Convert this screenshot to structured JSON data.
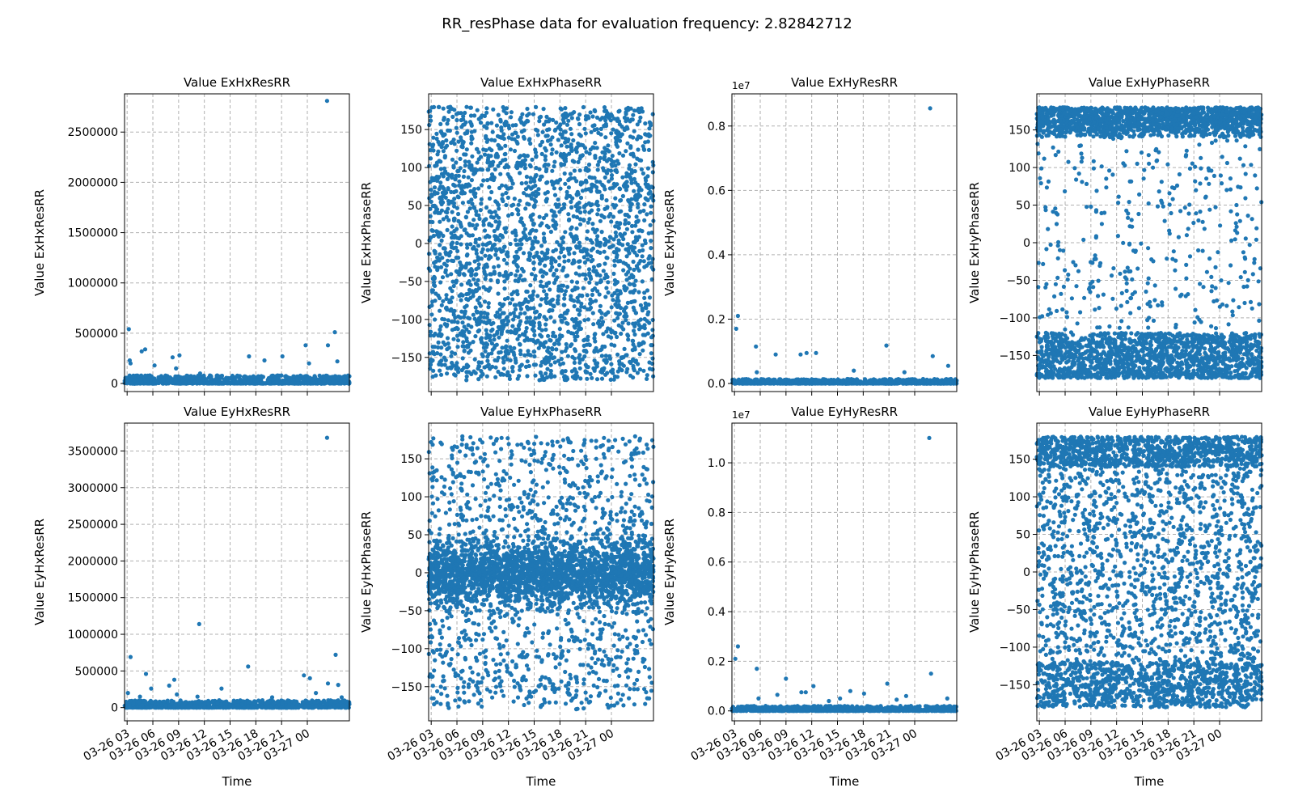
{
  "figure": {
    "title": "RR_resPhase data for evaluation frequency: 2.82842712"
  },
  "chart_data": [
    {
      "id": "exhx-res",
      "type": "scatter",
      "title": "Value ExHxResRR",
      "ylabel": "Value ExHxResRR",
      "xlabel": "",
      "ylim": [
        -80000,
        2880000
      ],
      "yticks": [
        0,
        500000,
        1000000,
        1500000,
        2000000,
        2500000
      ],
      "ytick_labels": [
        "0",
        "500000",
        "1000000",
        "1500000",
        "2000000",
        "2500000"
      ],
      "y_offset_text": "",
      "grid": true,
      "point_color": "#1f77b4",
      "distribution": "near-zero",
      "base_max": 80000,
      "n": 900,
      "seed": 11,
      "outliers": [
        [
          3.2,
          540000
        ],
        [
          3.3,
          230000
        ],
        [
          3.4,
          200000
        ],
        [
          4.7,
          320000
        ],
        [
          5.1,
          340000
        ],
        [
          6.2,
          180000
        ],
        [
          8.3,
          260000
        ],
        [
          9.1,
          280000
        ],
        [
          8.7,
          150000
        ],
        [
          17.2,
          270000
        ],
        [
          19.0,
          230000
        ],
        [
          21.1,
          270000
        ],
        [
          23.8,
          380000
        ],
        [
          26.3,
          2810000
        ],
        [
          26.4,
          380000
        ],
        [
          27.2,
          510000
        ],
        [
          27.5,
          220000
        ],
        [
          11.5,
          100000
        ],
        [
          24.2,
          200000
        ]
      ]
    },
    {
      "id": "exhx-phase",
      "type": "scatter",
      "title": "Value ExHxPhaseRR",
      "ylabel": "Value ExHxPhaseRR",
      "xlabel": "",
      "ylim": [
        -195,
        197
      ],
      "yticks": [
        -150,
        -100,
        -50,
        0,
        50,
        100,
        150
      ],
      "ytick_labels": [
        "−150",
        "−100",
        "−50",
        "0",
        "50",
        "100",
        "150"
      ],
      "y_offset_text": "",
      "grid": true,
      "point_color": "#1f77b4",
      "distribution": "uniform",
      "n": 2600,
      "seed": 23,
      "outliers": []
    },
    {
      "id": "exhy-res",
      "type": "scatter",
      "title": "Value ExHyResRR",
      "ylabel": "Value ExHyResRR",
      "xlabel": "",
      "ylim": [
        -0.025,
        0.9
      ],
      "yticks": [
        0.0,
        0.2,
        0.4,
        0.6,
        0.8
      ],
      "ytick_labels": [
        "0.0",
        "0.2",
        "0.4",
        "0.6",
        "0.8"
      ],
      "y_offset_text": "1e7",
      "grid": true,
      "point_color": "#1f77b4",
      "distribution": "near-zero",
      "base_max": 0.014,
      "n": 900,
      "seed": 37,
      "outliers": [
        [
          3.2,
          0.17
        ],
        [
          3.4,
          0.21
        ],
        [
          5.5,
          0.115
        ],
        [
          5.6,
          0.035
        ],
        [
          7.8,
          0.09
        ],
        [
          10.7,
          0.09
        ],
        [
          11.4,
          0.095
        ],
        [
          12.5,
          0.095
        ],
        [
          20.7,
          0.118
        ],
        [
          25.8,
          0.855
        ],
        [
          26.1,
          0.085
        ],
        [
          27.9,
          0.055
        ],
        [
          22.8,
          0.035
        ],
        [
          16.9,
          0.04
        ]
      ]
    },
    {
      "id": "exhy-phase",
      "type": "scatter",
      "title": "Value ExHyPhaseRR",
      "ylabel": "Value ExHyPhaseRR",
      "xlabel": "",
      "ylim": [
        -198,
        198
      ],
      "yticks": [
        -150,
        -100,
        -50,
        0,
        50,
        100,
        150
      ],
      "ytick_labels": [
        "−150",
        "−100",
        "−50",
        "0",
        "50",
        "100",
        "150"
      ],
      "y_offset_text": "",
      "grid": true,
      "point_color": "#1f77b4",
      "distribution": "bimodal-edges",
      "n": 3400,
      "seed": 41,
      "outliers": []
    },
    {
      "id": "eyhx-res",
      "type": "scatter",
      "title": "Value EyHxResRR",
      "ylabel": "Value EyHxResRR",
      "xlabel": "Time",
      "ylim": [
        -180000,
        3880000
      ],
      "yticks": [
        0,
        500000,
        1000000,
        1500000,
        2000000,
        2500000,
        3000000,
        3500000
      ],
      "ytick_labels": [
        "0",
        "500000",
        "1000000",
        "1500000",
        "2000000",
        "2500000",
        "3000000",
        "3500000"
      ],
      "y_offset_text": "",
      "grid": true,
      "point_color": "#1f77b4",
      "distribution": "near-zero",
      "base_max": 100000,
      "n": 900,
      "seed": 53,
      "outliers": [
        [
          3.1,
          200000
        ],
        [
          3.4,
          690000
        ],
        [
          4.5,
          150000
        ],
        [
          5.2,
          460000
        ],
        [
          5.8,
          260000
        ],
        [
          7.9,
          300000
        ],
        [
          8.5,
          380000
        ],
        [
          8.8,
          180000
        ],
        [
          11.4,
          1140000
        ],
        [
          11.2,
          150000
        ],
        [
          14.0,
          260000
        ],
        [
          17.1,
          560000
        ],
        [
          19.9,
          140000
        ],
        [
          23.6,
          440000
        ],
        [
          24.3,
          400000
        ],
        [
          25.0,
          200000
        ],
        [
          26.3,
          3680000
        ],
        [
          26.4,
          330000
        ],
        [
          27.3,
          720000
        ],
        [
          27.6,
          310000
        ],
        [
          28.0,
          140000
        ]
      ]
    },
    {
      "id": "eyhx-phase",
      "type": "scatter",
      "title": "Value EyHxPhaseRR",
      "ylabel": "Value EyHxPhaseRR",
      "xlabel": "Time",
      "ylim": [
        -195,
        197
      ],
      "yticks": [
        -150,
        -100,
        -50,
        0,
        50,
        100,
        150
      ],
      "ytick_labels": [
        "−150",
        "−100",
        "−50",
        "0",
        "50",
        "100",
        "150"
      ],
      "y_offset_text": "",
      "grid": true,
      "point_color": "#1f77b4",
      "distribution": "center-heavy",
      "n": 3400,
      "seed": 67,
      "outliers": []
    },
    {
      "id": "eyhy-res",
      "type": "scatter",
      "title": "Value EyHyResRR",
      "ylabel": "Value EyHyResRR",
      "xlabel": "Time",
      "ylim": [
        -0.04,
        1.16
      ],
      "yticks": [
        0.0,
        0.2,
        0.4,
        0.6,
        0.8,
        1.0
      ],
      "ytick_labels": [
        "0.0",
        "0.2",
        "0.4",
        "0.6",
        "0.8",
        "1.0"
      ],
      "y_offset_text": "1e7",
      "grid": true,
      "point_color": "#1f77b4",
      "distribution": "near-zero",
      "base_max": 0.02,
      "n": 900,
      "seed": 79,
      "outliers": [
        [
          3.1,
          0.21
        ],
        [
          3.4,
          0.26
        ],
        [
          5.6,
          0.17
        ],
        [
          5.8,
          0.05
        ],
        [
          8.0,
          0.065
        ],
        [
          9.0,
          0.13
        ],
        [
          10.8,
          0.075
        ],
        [
          11.3,
          0.075
        ],
        [
          12.2,
          0.1
        ],
        [
          15.3,
          0.05
        ],
        [
          16.5,
          0.08
        ],
        [
          18.1,
          0.07
        ],
        [
          20.8,
          0.11
        ],
        [
          21.9,
          0.045
        ],
        [
          23.0,
          0.06
        ],
        [
          25.7,
          1.1
        ],
        [
          25.9,
          0.15
        ],
        [
          27.8,
          0.05
        ],
        [
          14.0,
          0.04
        ]
      ]
    },
    {
      "id": "eyhy-phase",
      "type": "scatter",
      "title": "Value EyHyPhaseRR",
      "ylabel": "Value EyHyPhaseRR",
      "xlabel": "Time",
      "ylim": [
        -198,
        198
      ],
      "yticks": [
        -150,
        -100,
        -50,
        0,
        50,
        100,
        150
      ],
      "ytick_labels": [
        "−150",
        "−100",
        "−50",
        "0",
        "50",
        "100",
        "150"
      ],
      "y_offset_text": "",
      "grid": true,
      "point_color": "#1f77b4",
      "distribution": "edges-moderate",
      "n": 3400,
      "seed": 89,
      "outliers": []
    }
  ],
  "x_axis": {
    "range_hours": [
      2.7,
      28.9
    ],
    "ticks_hours": [
      3,
      6,
      9,
      12,
      15,
      18,
      21,
      24
    ],
    "tick_labels": [
      "03-26 03",
      "03-26 06",
      "03-26 09",
      "03-26 12",
      "03-26 15",
      "03-26 18",
      "03-26 21",
      "03-27 00"
    ]
  }
}
